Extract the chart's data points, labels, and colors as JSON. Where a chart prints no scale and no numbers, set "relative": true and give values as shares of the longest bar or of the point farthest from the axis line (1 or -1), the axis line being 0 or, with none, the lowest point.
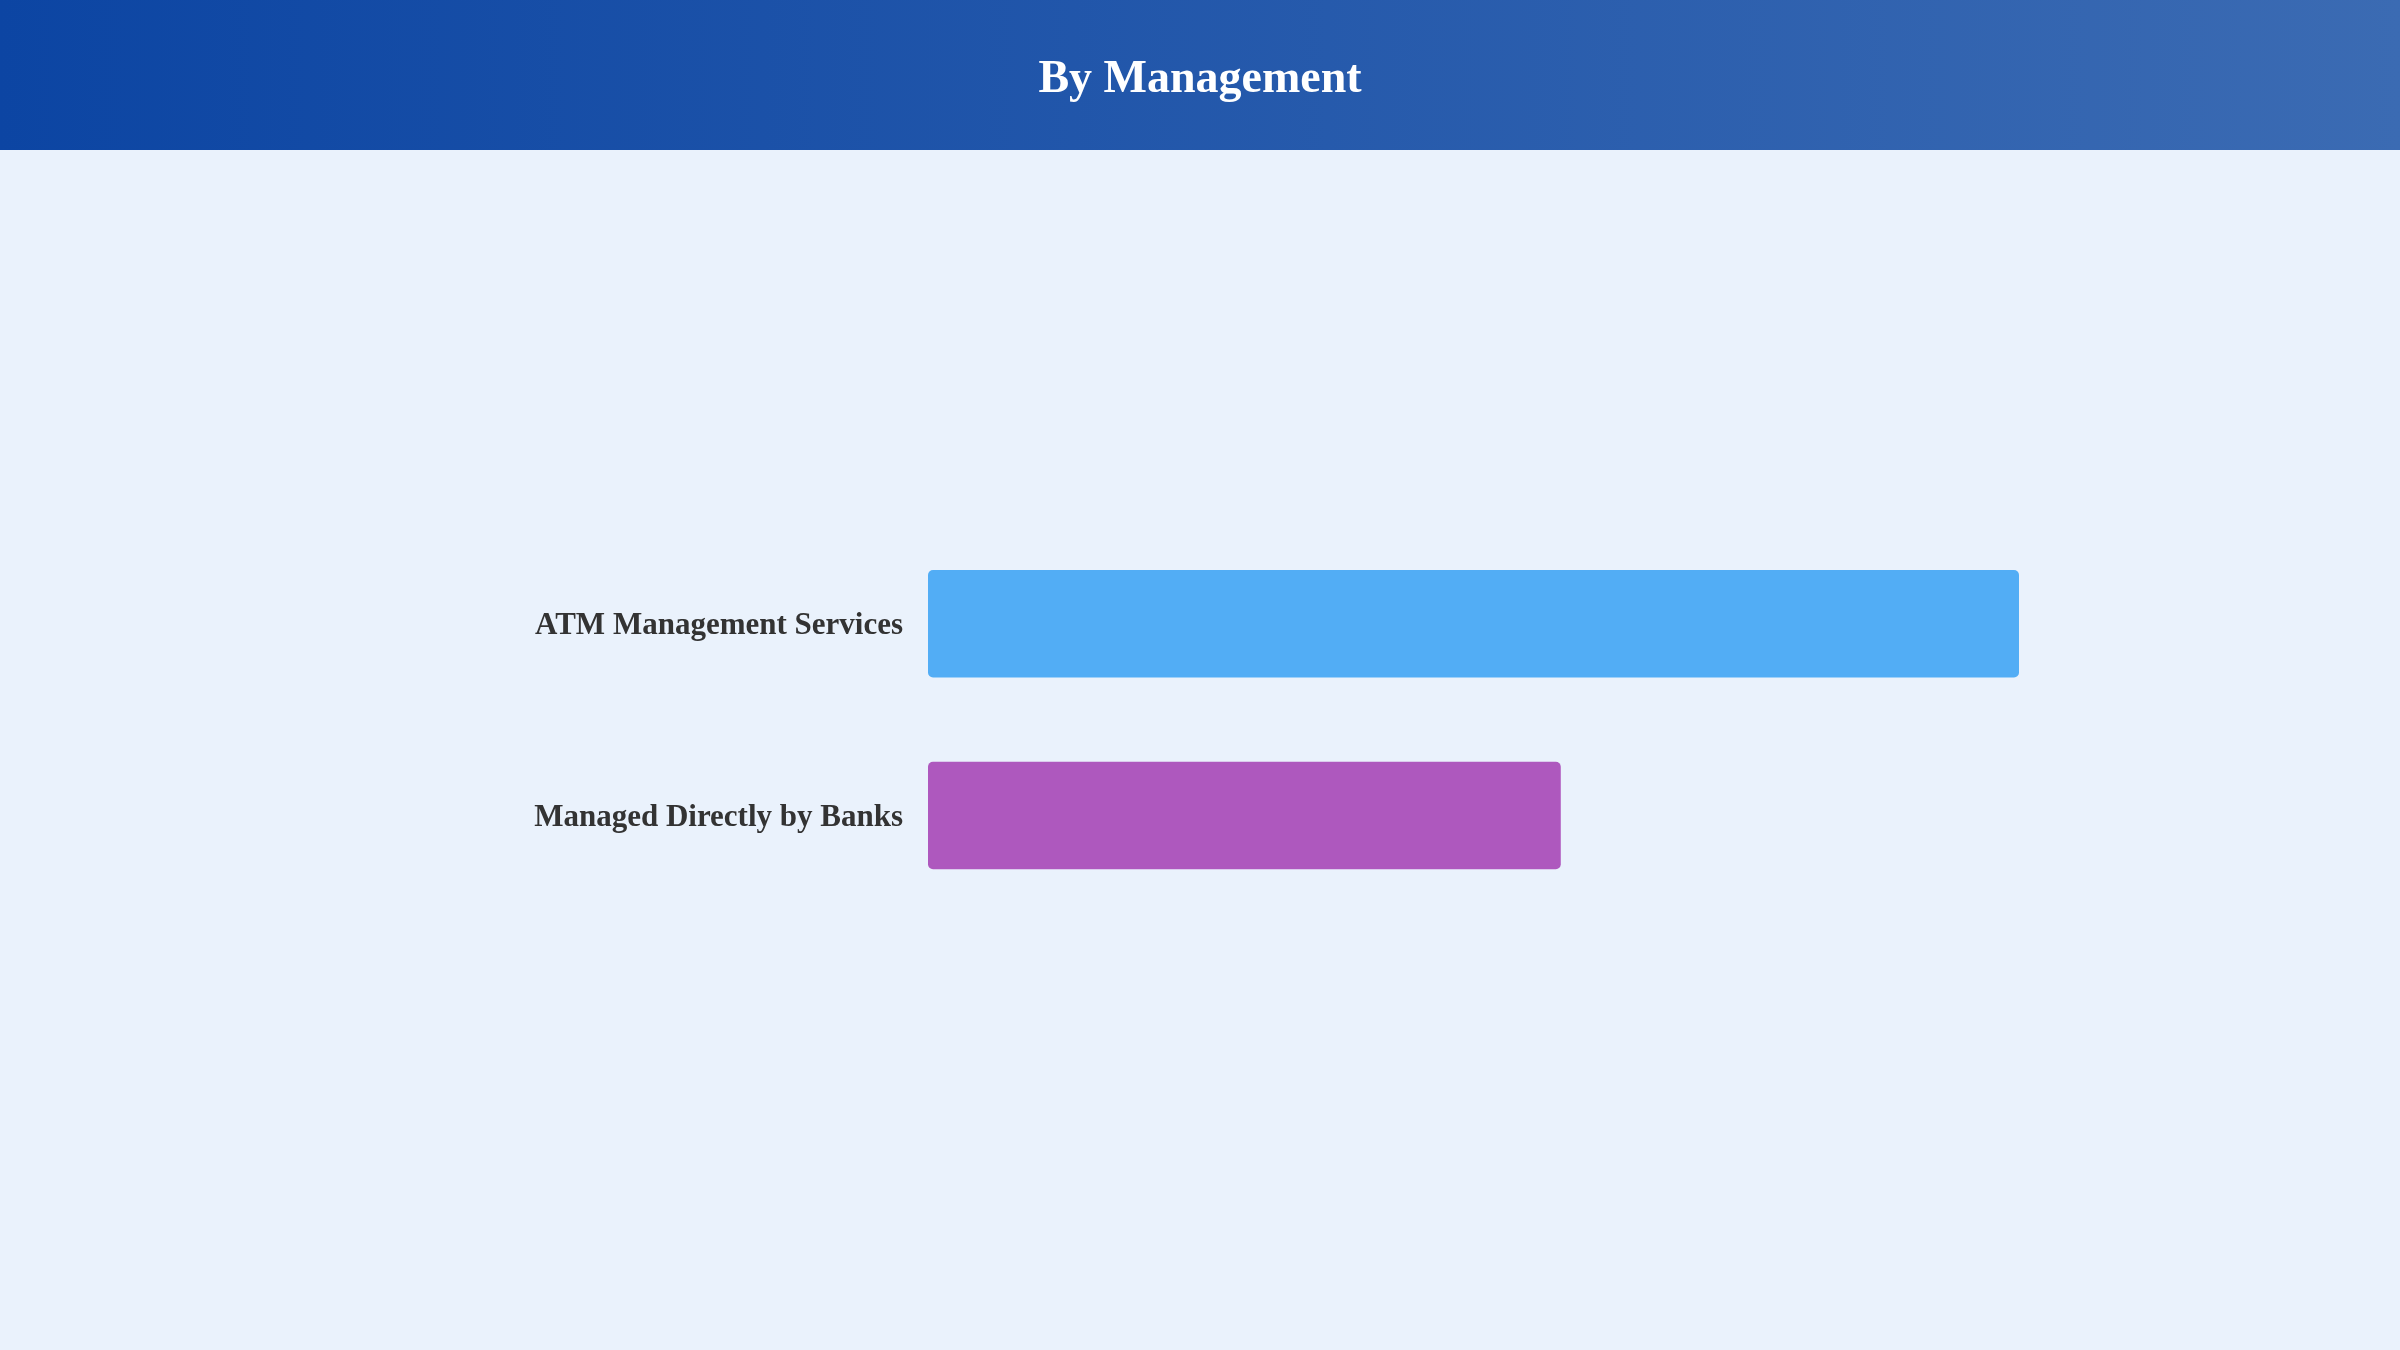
{
  "chart_data": {
    "type": "bar",
    "orientation": "horizontal",
    "relative": true,
    "title": "By Management",
    "categories": [
      "ATM Management Services",
      "Managed Directly by Banks"
    ],
    "values": [
      1,
      0.58
    ],
    "colors": [
      "#52adf5",
      "#ae58be"
    ]
  }
}
